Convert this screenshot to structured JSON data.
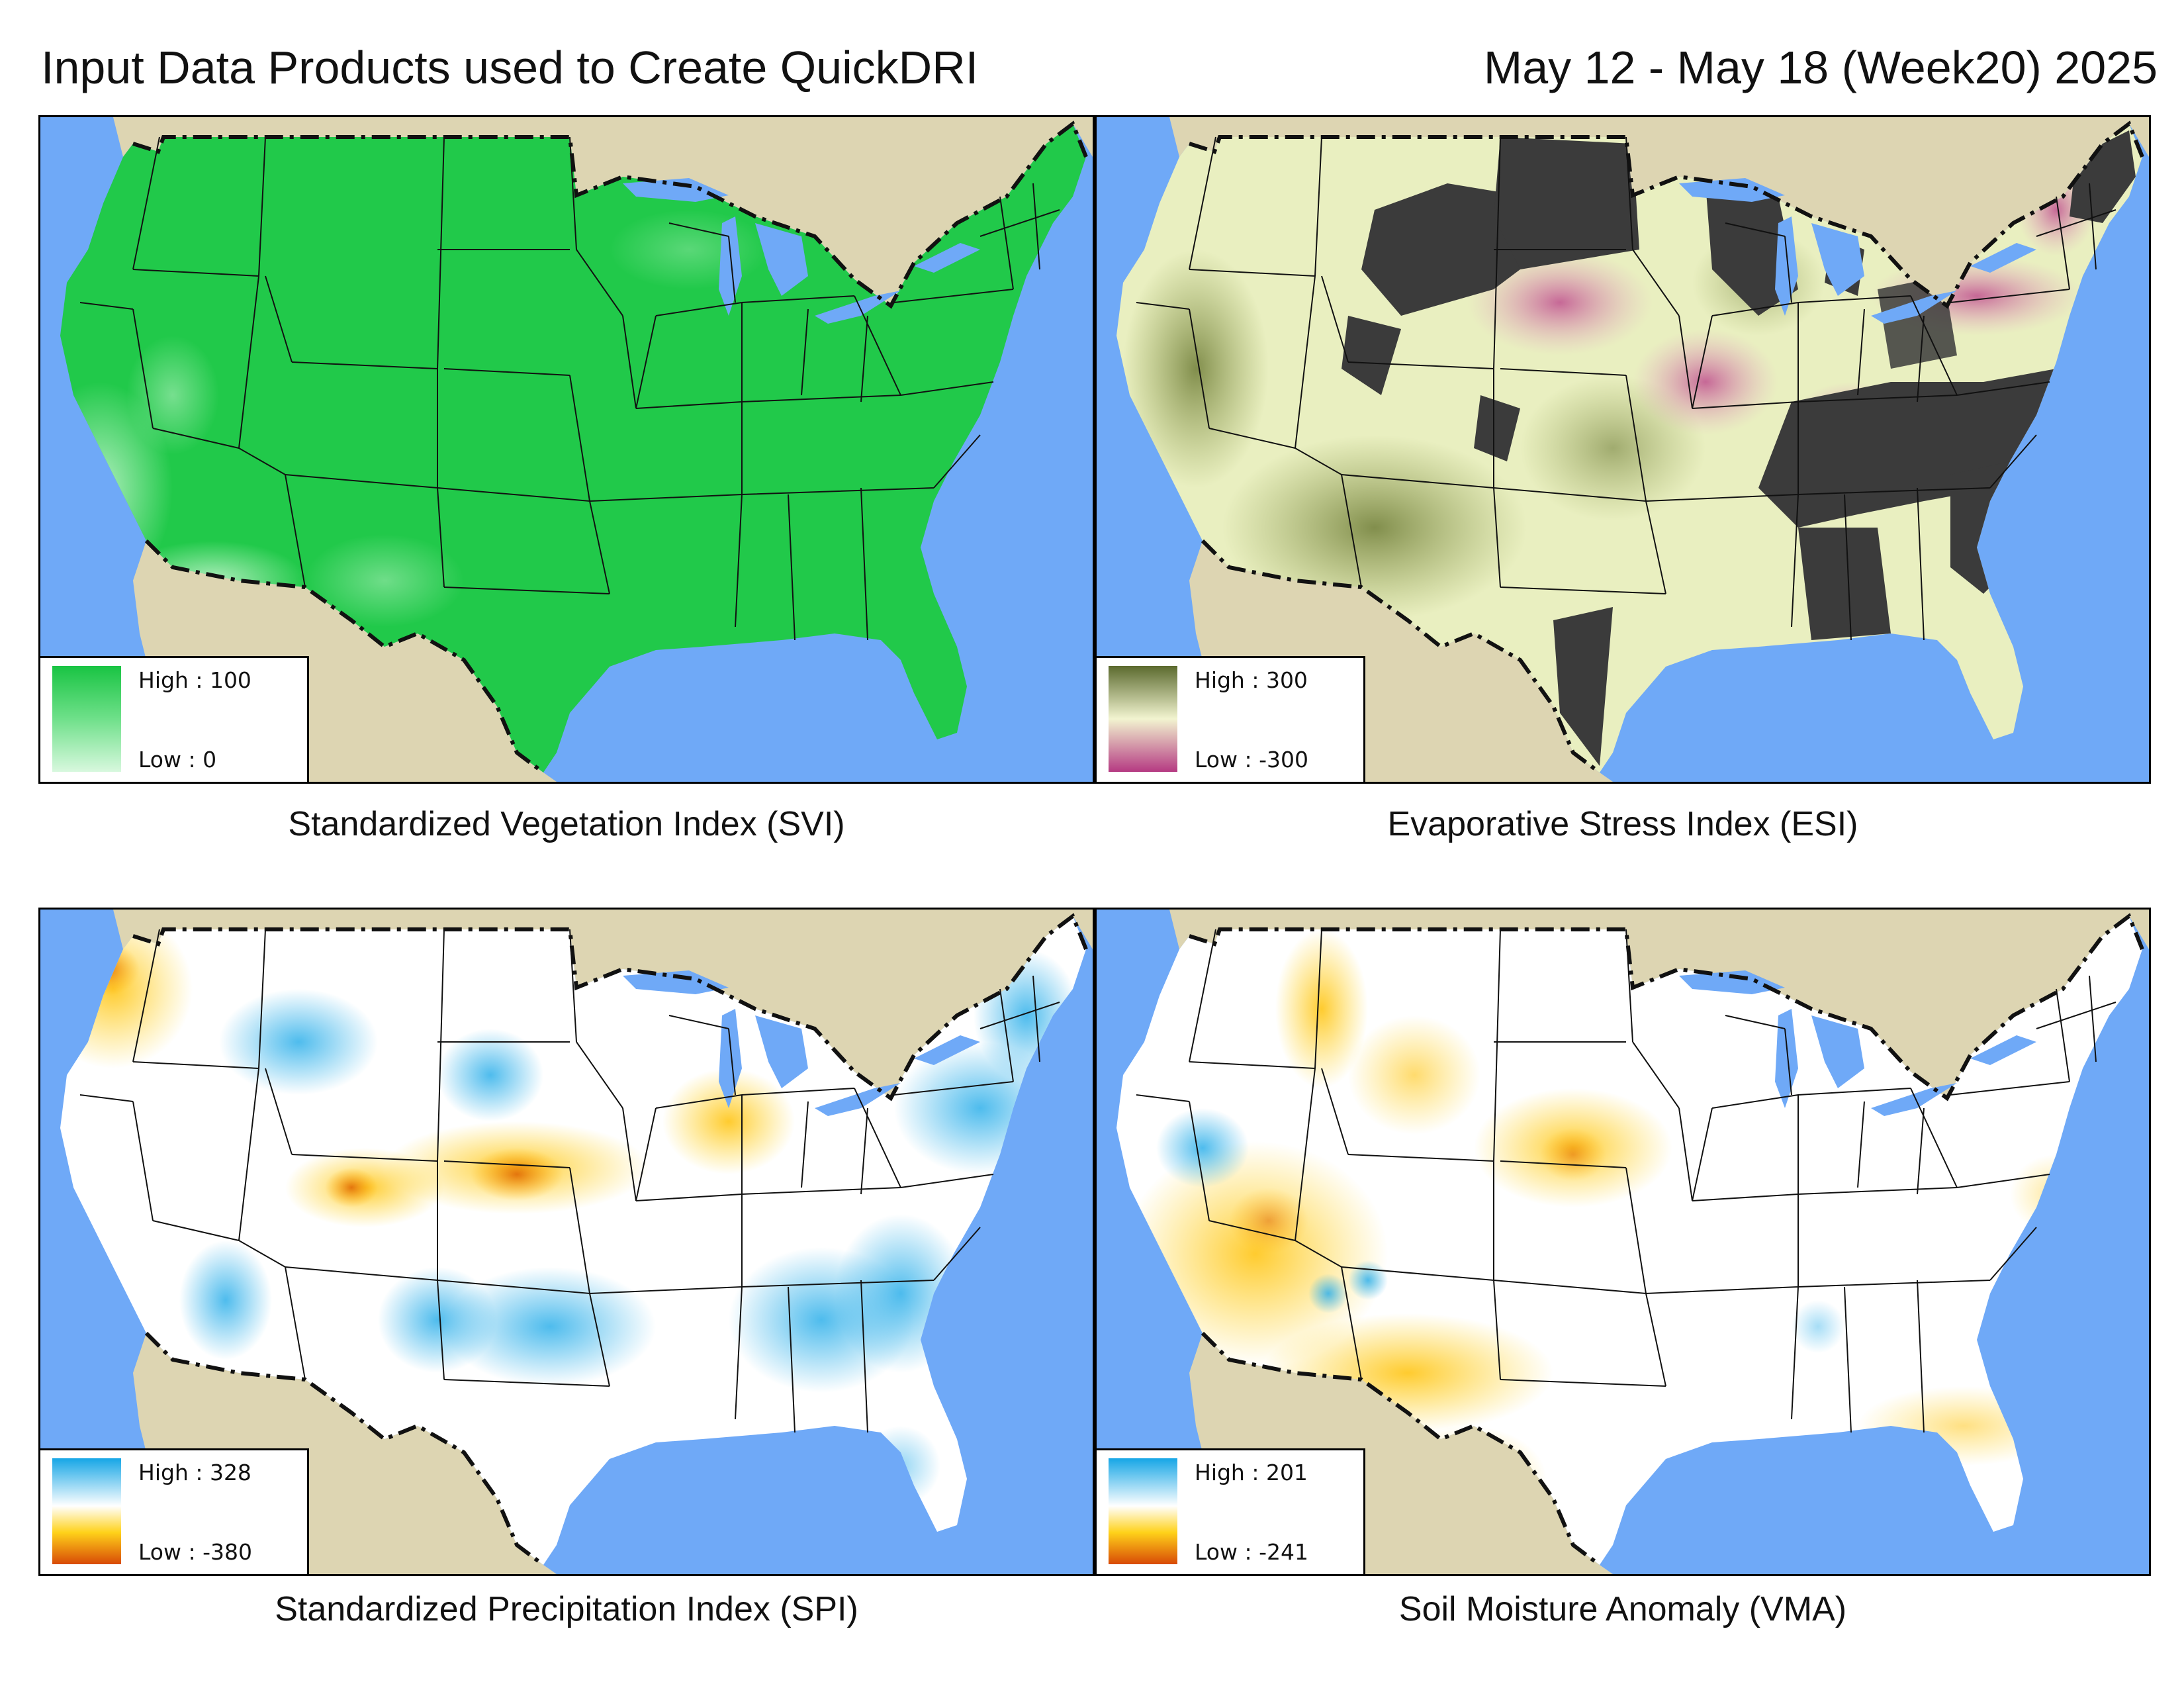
{
  "header": {
    "title": "Input Data Products used to Create QuickDRI",
    "date_range": "May 12 - May 18 (Week20) 2025"
  },
  "panels": {
    "svi": {
      "caption": "Standardized Vegetation Index (SVI)",
      "legend_high": "High : 100",
      "legend_low": "Low : 0",
      "colors": {
        "high": "#19c443",
        "mid": "#6fe08a",
        "low": "#d8f8de",
        "dominant": "#21c94a"
      }
    },
    "esi": {
      "caption": "Evaporative Stress Index (ESI)",
      "legend_high": "High : 300",
      "legend_low": "Low : -300",
      "colors": {
        "high": "#5b6a2e",
        "mid": "#f2f4d0",
        "low": "#b53a82",
        "masked": "#3b3b3b"
      }
    },
    "spi": {
      "caption": "Standardized Precipitation Index (SPI)",
      "legend_high": "High : 328",
      "legend_low": "Low : -380",
      "colors": {
        "high": "#16a6e6",
        "mid": "#ffffff",
        "yellow": "#ffd21a",
        "low": "#d84a06"
      }
    },
    "vma": {
      "caption": "Soil Moisture Anomaly (VMA)",
      "legend_high": "High : 201",
      "legend_low": "Low : -241",
      "colors": {
        "high": "#16a6e6",
        "mid": "#ffffff",
        "yellow": "#ffd21a",
        "low": "#d84a06"
      }
    }
  },
  "map_colors": {
    "water": "#6fa9f7",
    "land_outside": "#ddd5b2",
    "border_line": "#111111"
  }
}
